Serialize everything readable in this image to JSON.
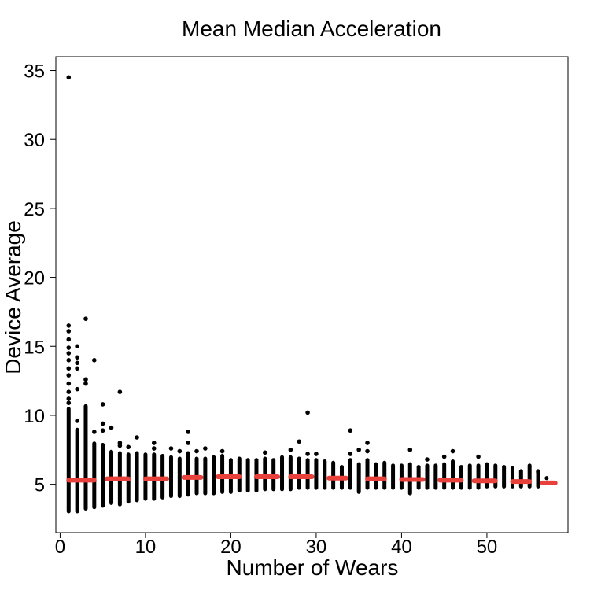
{
  "chart_data": {
    "type": "scatter",
    "title": "Mean Median Acceleration",
    "xlabel": "Number of Wears",
    "ylabel": "Device Average",
    "xlim": [
      -0.5,
      59.5
    ],
    "ylim": [
      1.5,
      36.0
    ],
    "xticks": [
      0,
      10,
      20,
      30,
      40,
      50
    ],
    "yticks": [
      5,
      10,
      15,
      20,
      25,
      30,
      35
    ],
    "grid": false,
    "legend": "none",
    "point_color": "#000000",
    "median_color": "#e8413c",
    "columns": [
      {
        "x": 1,
        "min": 2.9,
        "max": 10.6,
        "outliers": [
          34.5,
          16.5,
          16.1,
          15.5,
          14.9,
          14.5,
          14.0,
          13.4,
          12.9,
          12.3,
          11.7,
          11.2,
          10.9
        ]
      },
      {
        "x": 2,
        "min": 2.9,
        "max": 9.1,
        "outliers": [
          15.0,
          14.2,
          13.8,
          13.4,
          11.9,
          9.6
        ]
      },
      {
        "x": 3,
        "min": 3.1,
        "max": 10.8,
        "outliers": [
          17.0,
          12.6,
          12.3
        ]
      },
      {
        "x": 4,
        "min": 3.2,
        "max": 8.1,
        "outliers": [
          14.0,
          8.8
        ]
      },
      {
        "x": 5,
        "min": 3.3,
        "max": 8.0,
        "outliers": [
          10.8,
          9.4,
          8.9
        ]
      },
      {
        "x": 6,
        "min": 3.5,
        "max": 7.5,
        "outliers": [
          9.1
        ]
      },
      {
        "x": 7,
        "min": 3.4,
        "max": 7.4,
        "outliers": [
          11.7,
          8.0,
          7.8
        ]
      },
      {
        "x": 8,
        "min": 3.6,
        "max": 7.3,
        "outliers": [
          7.7
        ]
      },
      {
        "x": 9,
        "min": 3.7,
        "max": 7.4,
        "outliers": [
          8.4
        ]
      },
      {
        "x": 10,
        "min": 3.8,
        "max": 7.3,
        "outliers": []
      },
      {
        "x": 11,
        "min": 3.8,
        "max": 7.3,
        "outliers": [
          8.0,
          7.6
        ]
      },
      {
        "x": 12,
        "min": 3.9,
        "max": 7.2,
        "outliers": []
      },
      {
        "x": 13,
        "min": 4.0,
        "max": 7.1,
        "outliers": [
          7.6
        ]
      },
      {
        "x": 14,
        "min": 4.0,
        "max": 7.0,
        "outliers": [
          7.4
        ]
      },
      {
        "x": 15,
        "min": 4.1,
        "max": 7.4,
        "outliers": [
          8.8,
          8.0
        ]
      },
      {
        "x": 16,
        "min": 4.2,
        "max": 7.0,
        "outliers": [
          7.4
        ]
      },
      {
        "x": 17,
        "min": 4.2,
        "max": 7.0,
        "outliers": [
          7.6
        ]
      },
      {
        "x": 18,
        "min": 4.2,
        "max": 7.1,
        "outliers": []
      },
      {
        "x": 19,
        "min": 4.3,
        "max": 7.2,
        "outliers": [
          7.4
        ]
      },
      {
        "x": 20,
        "min": 4.3,
        "max": 6.9,
        "outliers": []
      },
      {
        "x": 21,
        "min": 4.4,
        "max": 7.0,
        "outliers": []
      },
      {
        "x": 22,
        "min": 4.4,
        "max": 6.9,
        "outliers": []
      },
      {
        "x": 23,
        "min": 4.4,
        "max": 6.9,
        "outliers": []
      },
      {
        "x": 24,
        "min": 4.5,
        "max": 7.0,
        "outliers": [
          7.3
        ]
      },
      {
        "x": 25,
        "min": 4.5,
        "max": 6.9,
        "outliers": []
      },
      {
        "x": 26,
        "min": 4.5,
        "max": 7.1,
        "outliers": []
      },
      {
        "x": 27,
        "min": 4.5,
        "max": 7.1,
        "outliers": [
          7.5
        ]
      },
      {
        "x": 28,
        "min": 4.6,
        "max": 7.0,
        "outliers": [
          8.1
        ]
      },
      {
        "x": 29,
        "min": 4.6,
        "max": 6.9,
        "outliers": [
          10.2,
          7.2
        ]
      },
      {
        "x": 30,
        "min": 4.6,
        "max": 6.9,
        "outliers": [
          7.2
        ]
      },
      {
        "x": 31,
        "min": 4.6,
        "max": 6.8,
        "outliers": []
      },
      {
        "x": 32,
        "min": 4.6,
        "max": 6.7,
        "outliers": []
      },
      {
        "x": 33,
        "min": 4.6,
        "max": 6.4,
        "outliers": []
      },
      {
        "x": 34,
        "min": 4.6,
        "max": 6.9,
        "outliers": [
          8.9,
          7.2
        ]
      },
      {
        "x": 35,
        "min": 4.3,
        "max": 6.6,
        "outliers": [
          7.5
        ]
      },
      {
        "x": 36,
        "min": 4.6,
        "max": 6.9,
        "outliers": [
          8.0,
          7.4
        ]
      },
      {
        "x": 37,
        "min": 4.6,
        "max": 6.6,
        "outliers": []
      },
      {
        "x": 38,
        "min": 4.6,
        "max": 6.7,
        "outliers": []
      },
      {
        "x": 39,
        "min": 4.6,
        "max": 6.5,
        "outliers": []
      },
      {
        "x": 40,
        "min": 4.6,
        "max": 6.5,
        "outliers": []
      },
      {
        "x": 41,
        "min": 4.2,
        "max": 6.6,
        "outliers": [
          7.5
        ]
      },
      {
        "x": 42,
        "min": 4.6,
        "max": 6.4,
        "outliers": []
      },
      {
        "x": 43,
        "min": 4.6,
        "max": 6.5,
        "outliers": [
          6.8
        ]
      },
      {
        "x": 44,
        "min": 4.6,
        "max": 6.5,
        "outliers": []
      },
      {
        "x": 45,
        "min": 4.6,
        "max": 6.6,
        "outliers": [
          7.0
        ]
      },
      {
        "x": 46,
        "min": 4.6,
        "max": 6.8,
        "outliers": [
          7.4
        ]
      },
      {
        "x": 47,
        "min": 4.6,
        "max": 6.4,
        "outliers": []
      },
      {
        "x": 48,
        "min": 4.6,
        "max": 6.5,
        "outliers": []
      },
      {
        "x": 49,
        "min": 4.6,
        "max": 6.5,
        "outliers": [
          7.0
        ]
      },
      {
        "x": 50,
        "min": 4.7,
        "max": 6.6,
        "outliers": []
      },
      {
        "x": 51,
        "min": 4.7,
        "max": 6.5,
        "outliers": []
      },
      {
        "x": 52,
        "min": 4.7,
        "max": 6.4,
        "outliers": []
      },
      {
        "x": 53,
        "min": 4.7,
        "max": 6.3,
        "outliers": []
      },
      {
        "x": 54,
        "min": 4.7,
        "max": 6.1,
        "outliers": []
      },
      {
        "x": 55,
        "min": 4.7,
        "max": 6.5,
        "outliers": []
      },
      {
        "x": 56,
        "min": 4.7,
        "max": 6.1,
        "outliers": [
          5.9
        ]
      },
      {
        "x": 57,
        "min": 5.3,
        "max": 5.6,
        "outliers": []
      }
    ],
    "medians": [
      {
        "x0": 1,
        "x1": 4,
        "y": 5.3
      },
      {
        "x0": 5.5,
        "x1": 8,
        "y": 5.4
      },
      {
        "x0": 10,
        "x1": 12.5,
        "y": 5.4
      },
      {
        "x0": 14.5,
        "x1": 16.5,
        "y": 5.5
      },
      {
        "x0": 18.5,
        "x1": 21,
        "y": 5.55
      },
      {
        "x0": 23,
        "x1": 25.5,
        "y": 5.55
      },
      {
        "x0": 27,
        "x1": 29.5,
        "y": 5.55
      },
      {
        "x0": 31.5,
        "x1": 33.5,
        "y": 5.45
      },
      {
        "x0": 36,
        "x1": 38,
        "y": 5.4
      },
      {
        "x0": 40,
        "x1": 42.5,
        "y": 5.35
      },
      {
        "x0": 44.5,
        "x1": 47,
        "y": 5.3
      },
      {
        "x0": 48.5,
        "x1": 51,
        "y": 5.25
      },
      {
        "x0": 53,
        "x1": 55,
        "y": 5.2
      },
      {
        "x0": 56.5,
        "x1": 58,
        "y": 5.1
      }
    ]
  }
}
